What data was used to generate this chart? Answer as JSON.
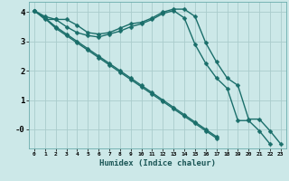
{
  "title": "",
  "xlabel": "Humidex (Indice chaleur)",
  "ylabel": "",
  "bg_color": "#cce8e8",
  "grid_color": "#aacccc",
  "line_color": "#1a6e6a",
  "line_width": 1.0,
  "marker_size": 2.5,
  "xlim": [
    -0.5,
    23.5
  ],
  "ylim": [
    -0.65,
    4.35
  ],
  "xticks": [
    0,
    1,
    2,
    3,
    4,
    5,
    6,
    7,
    8,
    9,
    10,
    11,
    12,
    13,
    14,
    15,
    16,
    17,
    18,
    19,
    20,
    21,
    22,
    23
  ],
  "yticks": [
    0,
    1,
    2,
    3,
    4
  ],
  "ytick_labels": [
    "-0",
    "1",
    "2",
    "3",
    "4"
  ],
  "series": [
    {
      "x": [
        0,
        1,
        2,
        3,
        4,
        5,
        6,
        7,
        8,
        9,
        10,
        11,
        12,
        13,
        14,
        15,
        16,
        17,
        18,
        19,
        20,
        21,
        22,
        23
      ],
      "y": [
        4.05,
        3.85,
        3.75,
        3.75,
        3.55,
        3.3,
        3.25,
        3.3,
        3.45,
        3.6,
        3.65,
        3.8,
        4.0,
        4.1,
        4.1,
        3.85,
        2.95,
        2.3,
        1.75,
        1.5,
        0.35,
        0.35,
        -0.05,
        -0.5
      ]
    },
    {
      "x": [
        0,
        1,
        2,
        3,
        4,
        5,
        6,
        7,
        8,
        9,
        10,
        11,
        12,
        13,
        14,
        15,
        16,
        17,
        18,
        19,
        20,
        21,
        22
      ],
      "y": [
        4.05,
        3.75,
        3.75,
        3.5,
        3.3,
        3.2,
        3.15,
        3.25,
        3.35,
        3.5,
        3.6,
        3.75,
        3.95,
        4.05,
        3.8,
        2.9,
        2.25,
        1.75,
        1.4,
        0.3,
        0.3,
        -0.05,
        -0.5
      ]
    },
    {
      "x": [
        0,
        1,
        2,
        3,
        4,
        5,
        6,
        7,
        8,
        9,
        10,
        11,
        12,
        13,
        14,
        15,
        16,
        17
      ],
      "y": [
        4.05,
        3.8,
        3.5,
        3.25,
        3.0,
        2.75,
        2.5,
        2.25,
        2.0,
        1.75,
        1.5,
        1.25,
        1.0,
        0.75,
        0.5,
        0.25,
        0.0,
        -0.25
      ]
    },
    {
      "x": [
        0,
        1,
        2,
        3,
        4,
        5,
        6,
        7,
        8,
        9,
        10,
        11,
        12,
        13,
        14,
        15,
        16,
        17
      ],
      "y": [
        4.05,
        3.78,
        3.45,
        3.2,
        2.95,
        2.7,
        2.45,
        2.2,
        1.95,
        1.7,
        1.45,
        1.2,
        0.95,
        0.7,
        0.45,
        0.2,
        -0.05,
        -0.3
      ]
    }
  ]
}
